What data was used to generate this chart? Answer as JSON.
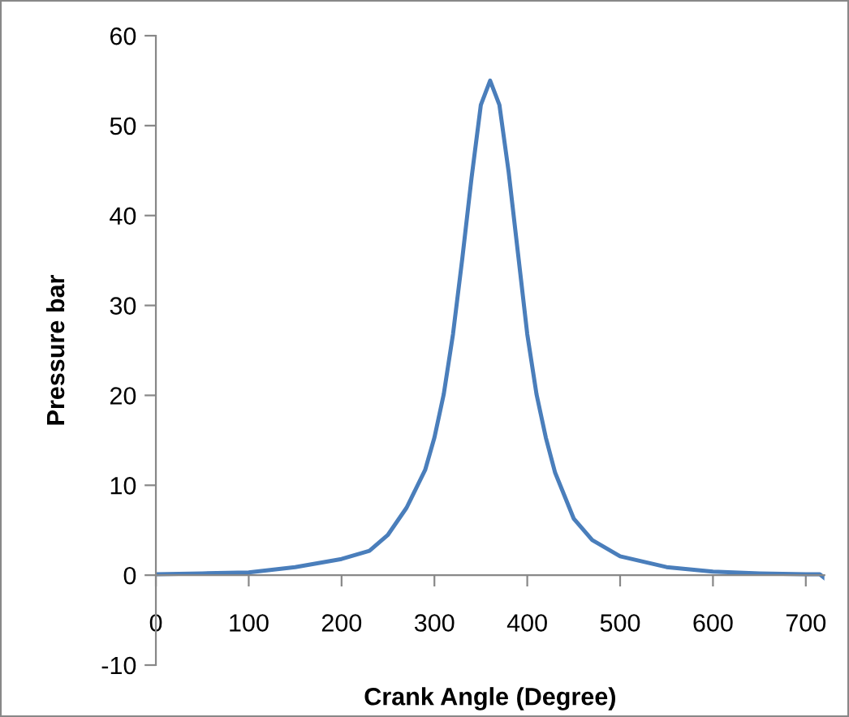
{
  "chart_data": {
    "type": "line",
    "xlabel": "Crank Angle (Degree)",
    "ylabel": "Pressure bar",
    "xlim": [
      0,
      720
    ],
    "ylim": [
      -10,
      60
    ],
    "xticks": [
      0,
      100,
      200,
      300,
      400,
      500,
      600,
      700
    ],
    "yticks": [
      -10,
      0,
      10,
      20,
      30,
      40,
      50,
      60
    ],
    "grid": false,
    "legend": false,
    "marker": "none",
    "line_style": "solid",
    "series": [
      {
        "color": "#4a7ebb",
        "x": [
          0,
          50,
          100,
          150,
          200,
          230,
          250,
          270,
          290,
          300,
          310,
          320,
          330,
          340,
          350,
          360,
          370,
          380,
          390,
          400,
          410,
          420,
          430,
          450,
          470,
          500,
          550,
          600,
          650,
          700,
          715,
          720
        ],
        "values": [
          0.1,
          0.2,
          0.3,
          0.9,
          1.8,
          2.7,
          4.5,
          7.5,
          11.7,
          15.3,
          20.1,
          26.8,
          35.2,
          44.2,
          52.3,
          55,
          52.3,
          44.8,
          35.8,
          26.8,
          20.1,
          15.3,
          11.4,
          6.3,
          3.9,
          2.1,
          0.9,
          0.4,
          0.2,
          0.1,
          0.1,
          -0.3
        ]
      }
    ]
  }
}
